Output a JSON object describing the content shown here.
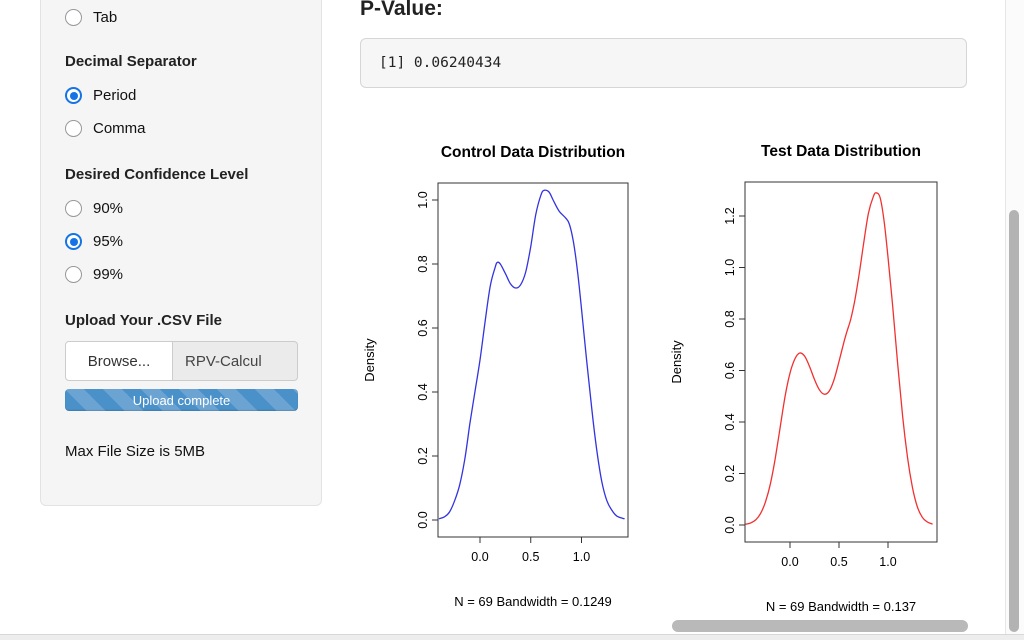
{
  "sidebar": {
    "tab_option": {
      "label": "Tab",
      "selected": false
    },
    "decimal_separator": {
      "label": "Decimal Separator",
      "options": [
        {
          "label": "Period",
          "selected": true
        },
        {
          "label": "Comma",
          "selected": false
        }
      ]
    },
    "confidence": {
      "label": "Desired Confidence Level",
      "options": [
        {
          "label": "90%",
          "selected": false
        },
        {
          "label": "95%",
          "selected": true
        },
        {
          "label": "99%",
          "selected": false
        }
      ]
    },
    "upload": {
      "label": "Upload Your .CSV File",
      "browse_label": "Browse...",
      "filename": "RPV-Calcul",
      "progress_label": "Upload complete",
      "note": "Max File Size is 5MB"
    }
  },
  "main": {
    "pvalue_label": "P-Value:",
    "pvalue_output": "[1] 0.06240434"
  },
  "chart_data": [
    {
      "type": "line",
      "title": "Control Data Distribution",
      "ylabel": "Density",
      "caption": "N = 69   Bandwidth = 0.1249",
      "n": 69,
      "bandwidth": 0.1249,
      "color": "#3333e0",
      "x_ticks": [
        0.0,
        0.5,
        1.0
      ],
      "y_ticks": [
        0.0,
        0.2,
        0.4,
        0.6,
        0.8,
        1.0
      ],
      "xlim": [
        -0.42,
        1.45
      ],
      "ylim": [
        0,
        1.05
      ],
      "points": [
        [
          -0.4,
          0.004
        ],
        [
          -0.35,
          0.01
        ],
        [
          -0.3,
          0.025
        ],
        [
          -0.25,
          0.06
        ],
        [
          -0.2,
          0.11
        ],
        [
          -0.15,
          0.19
        ],
        [
          -0.1,
          0.3
        ],
        [
          -0.05,
          0.4
        ],
        [
          0.0,
          0.5
        ],
        [
          0.05,
          0.62
        ],
        [
          0.1,
          0.73
        ],
        [
          0.15,
          0.79
        ],
        [
          0.17,
          0.805
        ],
        [
          0.2,
          0.8
        ],
        [
          0.25,
          0.77
        ],
        [
          0.3,
          0.738
        ],
        [
          0.35,
          0.725
        ],
        [
          0.4,
          0.735
        ],
        [
          0.45,
          0.775
        ],
        [
          0.5,
          0.855
        ],
        [
          0.55,
          0.955
        ],
        [
          0.6,
          1.015
        ],
        [
          0.63,
          1.03
        ],
        [
          0.68,
          1.025
        ],
        [
          0.72,
          1.0
        ],
        [
          0.78,
          0.965
        ],
        [
          0.84,
          0.945
        ],
        [
          0.88,
          0.925
        ],
        [
          0.92,
          0.87
        ],
        [
          0.96,
          0.78
        ],
        [
          1.0,
          0.66
        ],
        [
          1.05,
          0.5
        ],
        [
          1.1,
          0.35
        ],
        [
          1.15,
          0.22
        ],
        [
          1.2,
          0.12
        ],
        [
          1.25,
          0.06
        ],
        [
          1.3,
          0.03
        ],
        [
          1.35,
          0.012
        ],
        [
          1.42,
          0.004
        ]
      ]
    },
    {
      "type": "line",
      "title": "Test Data Distribution",
      "ylabel": "Density",
      "caption": "N = 69   Bandwidth = 0.137",
      "n": 69,
      "bandwidth": 0.137,
      "color": "#f23030",
      "x_ticks": [
        0.0,
        0.5,
        1.0
      ],
      "y_ticks": [
        0.0,
        0.2,
        0.4,
        0.6,
        0.8,
        1.0,
        1.2
      ],
      "xlim": [
        -0.46,
        1.48
      ],
      "ylim": [
        0,
        1.33
      ],
      "points": [
        [
          -0.45,
          0.003
        ],
        [
          -0.4,
          0.008
        ],
        [
          -0.35,
          0.02
        ],
        [
          -0.3,
          0.045
        ],
        [
          -0.25,
          0.09
        ],
        [
          -0.2,
          0.16
        ],
        [
          -0.15,
          0.26
        ],
        [
          -0.1,
          0.38
        ],
        [
          -0.05,
          0.5
        ],
        [
          0.0,
          0.59
        ],
        [
          0.05,
          0.645
        ],
        [
          0.1,
          0.668
        ],
        [
          0.15,
          0.655
        ],
        [
          0.2,
          0.615
        ],
        [
          0.25,
          0.565
        ],
        [
          0.3,
          0.525
        ],
        [
          0.35,
          0.508
        ],
        [
          0.4,
          0.52
        ],
        [
          0.45,
          0.565
        ],
        [
          0.5,
          0.635
        ],
        [
          0.55,
          0.71
        ],
        [
          0.58,
          0.75
        ],
        [
          0.62,
          0.8
        ],
        [
          0.66,
          0.87
        ],
        [
          0.7,
          0.96
        ],
        [
          0.75,
          1.09
        ],
        [
          0.8,
          1.21
        ],
        [
          0.85,
          1.275
        ],
        [
          0.88,
          1.29
        ],
        [
          0.92,
          1.27
        ],
        [
          0.96,
          1.18
        ],
        [
          1.0,
          1.04
        ],
        [
          1.05,
          0.84
        ],
        [
          1.1,
          0.62
        ],
        [
          1.15,
          0.42
        ],
        [
          1.2,
          0.26
        ],
        [
          1.25,
          0.145
        ],
        [
          1.3,
          0.07
        ],
        [
          1.35,
          0.03
        ],
        [
          1.4,
          0.012
        ],
        [
          1.45,
          0.004
        ]
      ]
    }
  ]
}
